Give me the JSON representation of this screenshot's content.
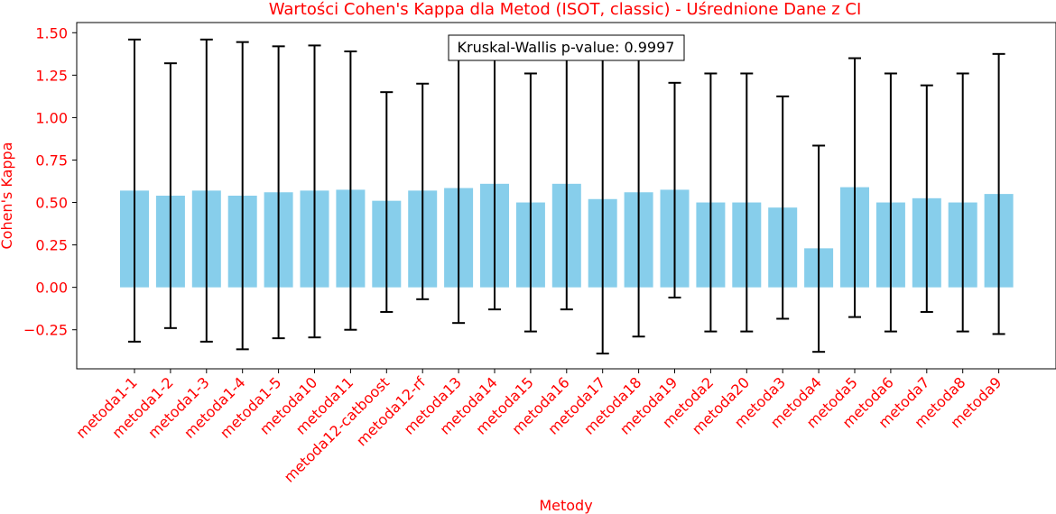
{
  "chart_data": {
    "type": "bar",
    "title": "Wartości Cohen's Kappa dla Metod (ISOT, classic) - Uśrednione Dane z CI",
    "xlabel": "Metody",
    "ylabel": "Cohen's Kappa",
    "ylim": [
      -0.48,
      1.56
    ],
    "yticks": [
      -0.25,
      0.0,
      0.25,
      0.5,
      0.75,
      1.0,
      1.25,
      1.5
    ],
    "ytick_labels": [
      "−0.25",
      "0.00",
      "0.25",
      "0.50",
      "0.75",
      "1.00",
      "1.25",
      "1.50"
    ],
    "grid": false,
    "categories": [
      "metoda1-1",
      "metoda1-2",
      "metoda1-3",
      "metoda1-4",
      "metoda1-5",
      "metoda10",
      "metoda11",
      "metoda12-catboost",
      "metoda12-rf",
      "metoda13",
      "metoda14",
      "metoda15",
      "metoda16",
      "metoda17",
      "metoda18",
      "metoda19",
      "metoda2",
      "metoda20",
      "metoda3",
      "metoda4",
      "metoda5",
      "metoda6",
      "metoda7",
      "metoda8",
      "metoda9"
    ],
    "values": [
      0.57,
      0.54,
      0.57,
      0.54,
      0.56,
      0.57,
      0.575,
      0.51,
      0.57,
      0.585,
      0.61,
      0.5,
      0.61,
      0.52,
      0.56,
      0.575,
      0.5,
      0.5,
      0.47,
      0.23,
      0.59,
      0.5,
      0.525,
      0.5,
      0.55
    ],
    "ci_lower": [
      -0.32,
      -0.24,
      -0.32,
      -0.365,
      -0.3,
      -0.295,
      -0.25,
      -0.145,
      -0.07,
      -0.21,
      -0.13,
      -0.26,
      -0.13,
      -0.39,
      -0.29,
      -0.06,
      -0.26,
      -0.26,
      -0.185,
      -0.38,
      -0.175,
      -0.26,
      -0.145,
      -0.26,
      -0.275
    ],
    "ci_upper": [
      1.46,
      1.32,
      1.46,
      1.445,
      1.42,
      1.425,
      1.39,
      1.15,
      1.2,
      1.38,
      1.35,
      1.26,
      1.35,
      1.43,
      1.41,
      1.205,
      1.26,
      1.26,
      1.125,
      0.835,
      1.35,
      1.26,
      1.19,
      1.26,
      1.375
    ],
    "annotation": "Kruskal-Wallis p-value: 0.9997",
    "colors": {
      "bar": "#87ceeb",
      "errorbar": "#000000",
      "label": "#ff0000",
      "axis": "#000000"
    }
  }
}
